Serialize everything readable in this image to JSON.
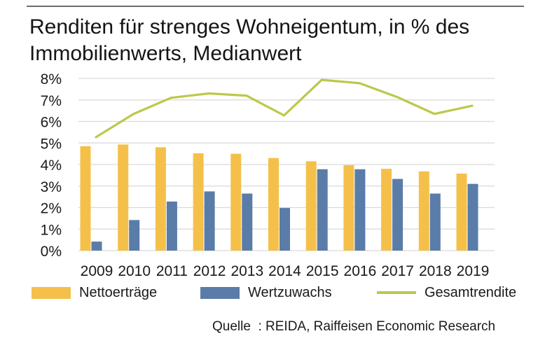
{
  "title_line1": "Renditen für strenges Wohneigentum, in % des",
  "title_line2": "Immobilienwerts, Medianwert",
  "source_prefix": "Quelle",
  "source_text": ": REIDA, Raiffeisen Economic Research",
  "colors": {
    "netto": "#f5c04a",
    "wert": "#5a7ca8",
    "gesamt": "#bcc84a",
    "grid": "#d9d9d9"
  },
  "chart_data": {
    "type": "bar",
    "categories": [
      "2009",
      "2010",
      "2011",
      "2012",
      "2013",
      "2014",
      "2015",
      "2016",
      "2017",
      "2018",
      "2019"
    ],
    "y_tick_labels": [
      "0%",
      "1%",
      "2%",
      "3%",
      "4%",
      "5%",
      "6%",
      "7%",
      "8%"
    ],
    "ylim": [
      0,
      8
    ],
    "grid": true,
    "legend_position": "bottom",
    "series": [
      {
        "name": "Nettoerträge",
        "kind": "bar",
        "values": [
          4.85,
          4.93,
          4.8,
          4.52,
          4.5,
          4.3,
          4.15,
          3.97,
          3.8,
          3.68,
          3.58
        ]
      },
      {
        "name": "Wertzuwachs",
        "kind": "bar",
        "values": [
          0.42,
          1.42,
          2.28,
          2.75,
          2.65,
          1.98,
          3.78,
          3.78,
          3.33,
          2.65,
          3.1
        ]
      },
      {
        "name": "Gesamtrendite",
        "kind": "line",
        "values": [
          5.27,
          6.35,
          7.1,
          7.3,
          7.2,
          6.28,
          7.93,
          7.78,
          7.14,
          6.35,
          6.73
        ]
      }
    ]
  }
}
